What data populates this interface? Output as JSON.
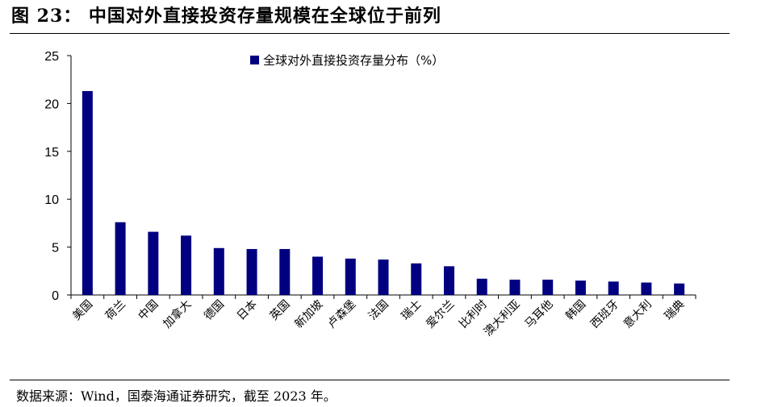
{
  "figure": {
    "title": "图 23：  中国对外直接投资存量规模在全球位于前列",
    "source": "数据来源：Wind，国泰海通证券研究，截至 2023 年。"
  },
  "colors": {
    "bar": "#000080",
    "axis": "#000000"
  },
  "chart_data": {
    "type": "bar",
    "categories": [
      "美国",
      "荷兰",
      "中国",
      "加拿大",
      "德国",
      "日本",
      "英国",
      "新加坡",
      "卢森堡",
      "法国",
      "瑞士",
      "爱尔兰",
      "比利时",
      "澳大利亚",
      "马耳他",
      "韩国",
      "西班牙",
      "意大利",
      "瑞典"
    ],
    "series": [
      {
        "name": "全球对外直接投资存量分布（%）",
        "values": [
          21.3,
          7.6,
          6.6,
          6.2,
          4.9,
          4.8,
          4.8,
          4.0,
          3.8,
          3.7,
          3.3,
          3.0,
          1.7,
          1.6,
          1.6,
          1.5,
          1.4,
          1.3,
          1.2
        ]
      }
    ],
    "ylim": [
      0,
      25
    ],
    "yticks": [
      "0",
      "5",
      "10",
      "15",
      "20",
      "25"
    ],
    "legend": "top-center",
    "grid": false
  }
}
